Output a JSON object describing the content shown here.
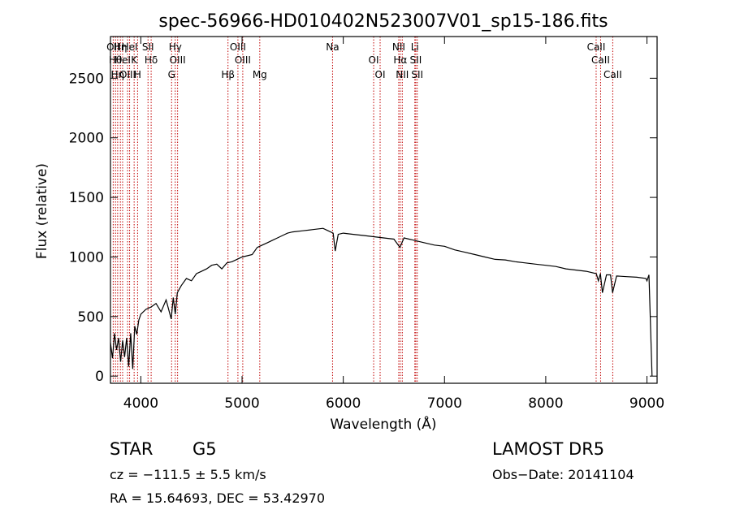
{
  "chart_data": {
    "type": "line",
    "title": "spec-56966-HD010402N523007V01_sp15-186.fits",
    "xlabel": "Wavelength (Å)",
    "ylabel": "Flux (relative)",
    "xlim": [
      3700,
      9100
    ],
    "ylim": [
      -60,
      2850
    ],
    "xticks": [
      4000,
      5000,
      6000,
      7000,
      8000,
      9000
    ],
    "yticks": [
      0,
      500,
      1000,
      1500,
      2000,
      2500
    ],
    "series": [
      {
        "x": [
          3700,
          3720,
          3740,
          3760,
          3780,
          3800,
          3820,
          3840,
          3860,
          3880,
          3900,
          3920,
          3940,
          3960,
          3980,
          4000,
          4050,
          4100,
          4150,
          4200,
          4250,
          4300,
          4320,
          4340,
          4360,
          4400,
          4450,
          4500,
          4550,
          4600,
          4650,
          4700,
          4750,
          4800,
          4850,
          4900,
          4950,
          5000,
          5050,
          5100,
          5150,
          5200,
          5250,
          5300,
          5350,
          5400,
          5450,
          5500,
          5600,
          5700,
          5800,
          5850,
          5900,
          5920,
          5950,
          6000,
          6100,
          6200,
          6300,
          6400,
          6500,
          6560,
          6600,
          6650,
          6700,
          6750,
          6800,
          6900,
          7000,
          7100,
          7200,
          7300,
          7400,
          7500,
          7600,
          7700,
          7800,
          7900,
          8000,
          8100,
          8200,
          8300,
          8400,
          8500,
          8520,
          8540,
          8560,
          8600,
          8640,
          8660,
          8700,
          8800,
          8900,
          8990,
          9000,
          9020,
          9050
        ],
        "y": [
          280,
          150,
          360,
          220,
          320,
          120,
          300,
          160,
          320,
          80,
          360,
          60,
          420,
          350,
          470,
          520,
          560,
          580,
          610,
          540,
          640,
          480,
          660,
          520,
          700,
          760,
          820,
          800,
          860,
          880,
          900,
          930,
          940,
          900,
          950,
          960,
          980,
          1000,
          1010,
          1020,
          1080,
          1100,
          1120,
          1140,
          1160,
          1180,
          1200,
          1210,
          1220,
          1230,
          1240,
          1220,
          1200,
          1050,
          1190,
          1200,
          1190,
          1180,
          1170,
          1160,
          1150,
          1080,
          1160,
          1150,
          1140,
          1130,
          1120,
          1100,
          1090,
          1060,
          1040,
          1020,
          1000,
          980,
          975,
          960,
          950,
          940,
          930,
          920,
          900,
          890,
          880,
          860,
          800,
          860,
          700,
          850,
          850,
          700,
          840,
          835,
          830,
          820,
          800,
          850,
          0
        ]
      }
    ],
    "line_markers": [
      {
        "wl": 3727,
        "label": "OII"
      },
      {
        "wl": 3750,
        "label": "Hθ"
      },
      {
        "wl": 3771,
        "label": "Hη"
      },
      {
        "wl": 3798,
        "label": "Hη"
      },
      {
        "wl": 3820,
        "label": "HeI"
      },
      {
        "wl": 3869,
        "label": "OIII"
      },
      {
        "wl": 3889,
        "label": "HeI"
      },
      {
        "wl": 3934,
        "label": "K"
      },
      {
        "wl": 3968,
        "label": "H"
      },
      {
        "wl": 4071,
        "label": "SII"
      },
      {
        "wl": 4102,
        "label": "Hδ"
      },
      {
        "wl": 4304,
        "label": "G"
      },
      {
        "wl": 4340,
        "label": "Hγ"
      },
      {
        "wl": 4363,
        "label": "OIII"
      },
      {
        "wl": 4861,
        "label": "Hβ"
      },
      {
        "wl": 4959,
        "label": "OIII"
      },
      {
        "wl": 5007,
        "label": "OIII"
      },
      {
        "wl": 5175,
        "label": "Mg"
      },
      {
        "wl": 5894,
        "label": "Na"
      },
      {
        "wl": 6300,
        "label": "OI"
      },
      {
        "wl": 6364,
        "label": "OI"
      },
      {
        "wl": 6548,
        "label": "NII"
      },
      {
        "wl": 6563,
        "label": "Hα"
      },
      {
        "wl": 6583,
        "label": "NII"
      },
      {
        "wl": 6707,
        "label": "Li"
      },
      {
        "wl": 6716,
        "label": "SII"
      },
      {
        "wl": 6731,
        "label": "SII"
      },
      {
        "wl": 8498,
        "label": "CaII"
      },
      {
        "wl": 8542,
        "label": "CaII"
      },
      {
        "wl": 8662,
        "label": "CaII"
      }
    ]
  },
  "info": {
    "object_class": "STAR",
    "subclass": "G5",
    "survey": "LAMOST DR5",
    "cz": "cz = −111.5 ± 5.5 km/s",
    "obs_date": "Obs−Date: 20141104",
    "coords": "RA =  15.64693, DEC =  53.42970"
  }
}
